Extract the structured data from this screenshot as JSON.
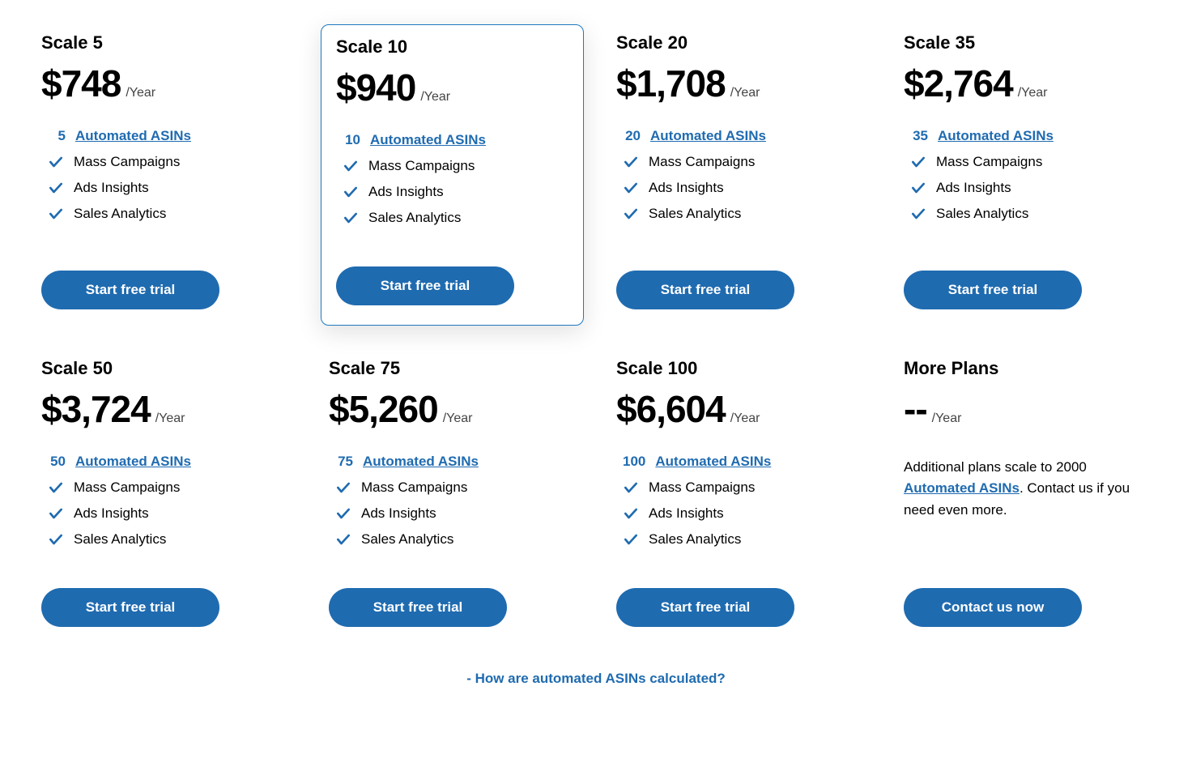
{
  "colors": {
    "accent": "#1f6bb0",
    "text": "#000000",
    "muted": "#444444",
    "background": "#ffffff",
    "highlight_border": "#1f79bf"
  },
  "period_label": "/Year",
  "asin_link_label": "Automated ASINs",
  "feature_labels": {
    "mass_campaigns": "Mass Campaigns",
    "ads_insights": "Ads Insights",
    "sales_analytics": "Sales Analytics"
  },
  "cta_default": "Start free trial",
  "plans": [
    {
      "name": "Scale 5",
      "price": "$748",
      "asins": "5",
      "highlighted": false
    },
    {
      "name": "Scale 10",
      "price": "$940",
      "asins": "10",
      "highlighted": true
    },
    {
      "name": "Scale 20",
      "price": "$1,708",
      "asins": "20",
      "highlighted": false
    },
    {
      "name": "Scale 35",
      "price": "$2,764",
      "asins": "35",
      "highlighted": false
    },
    {
      "name": "Scale 50",
      "price": "$3,724",
      "asins": "50",
      "highlighted": false
    },
    {
      "name": "Scale 75",
      "price": "$5,260",
      "asins": "75",
      "highlighted": false
    },
    {
      "name": "Scale 100",
      "price": "$6,604",
      "asins": "100",
      "highlighted": false
    }
  ],
  "more_plans": {
    "name": "More Plans",
    "price": "--",
    "desc_prefix": "Additional plans scale to 2000 ",
    "desc_link": "Automated ASINs",
    "desc_suffix": ". Contact us if you need even more.",
    "cta": "Contact us now"
  },
  "footer_link": "- How are automated ASINs calculated?"
}
